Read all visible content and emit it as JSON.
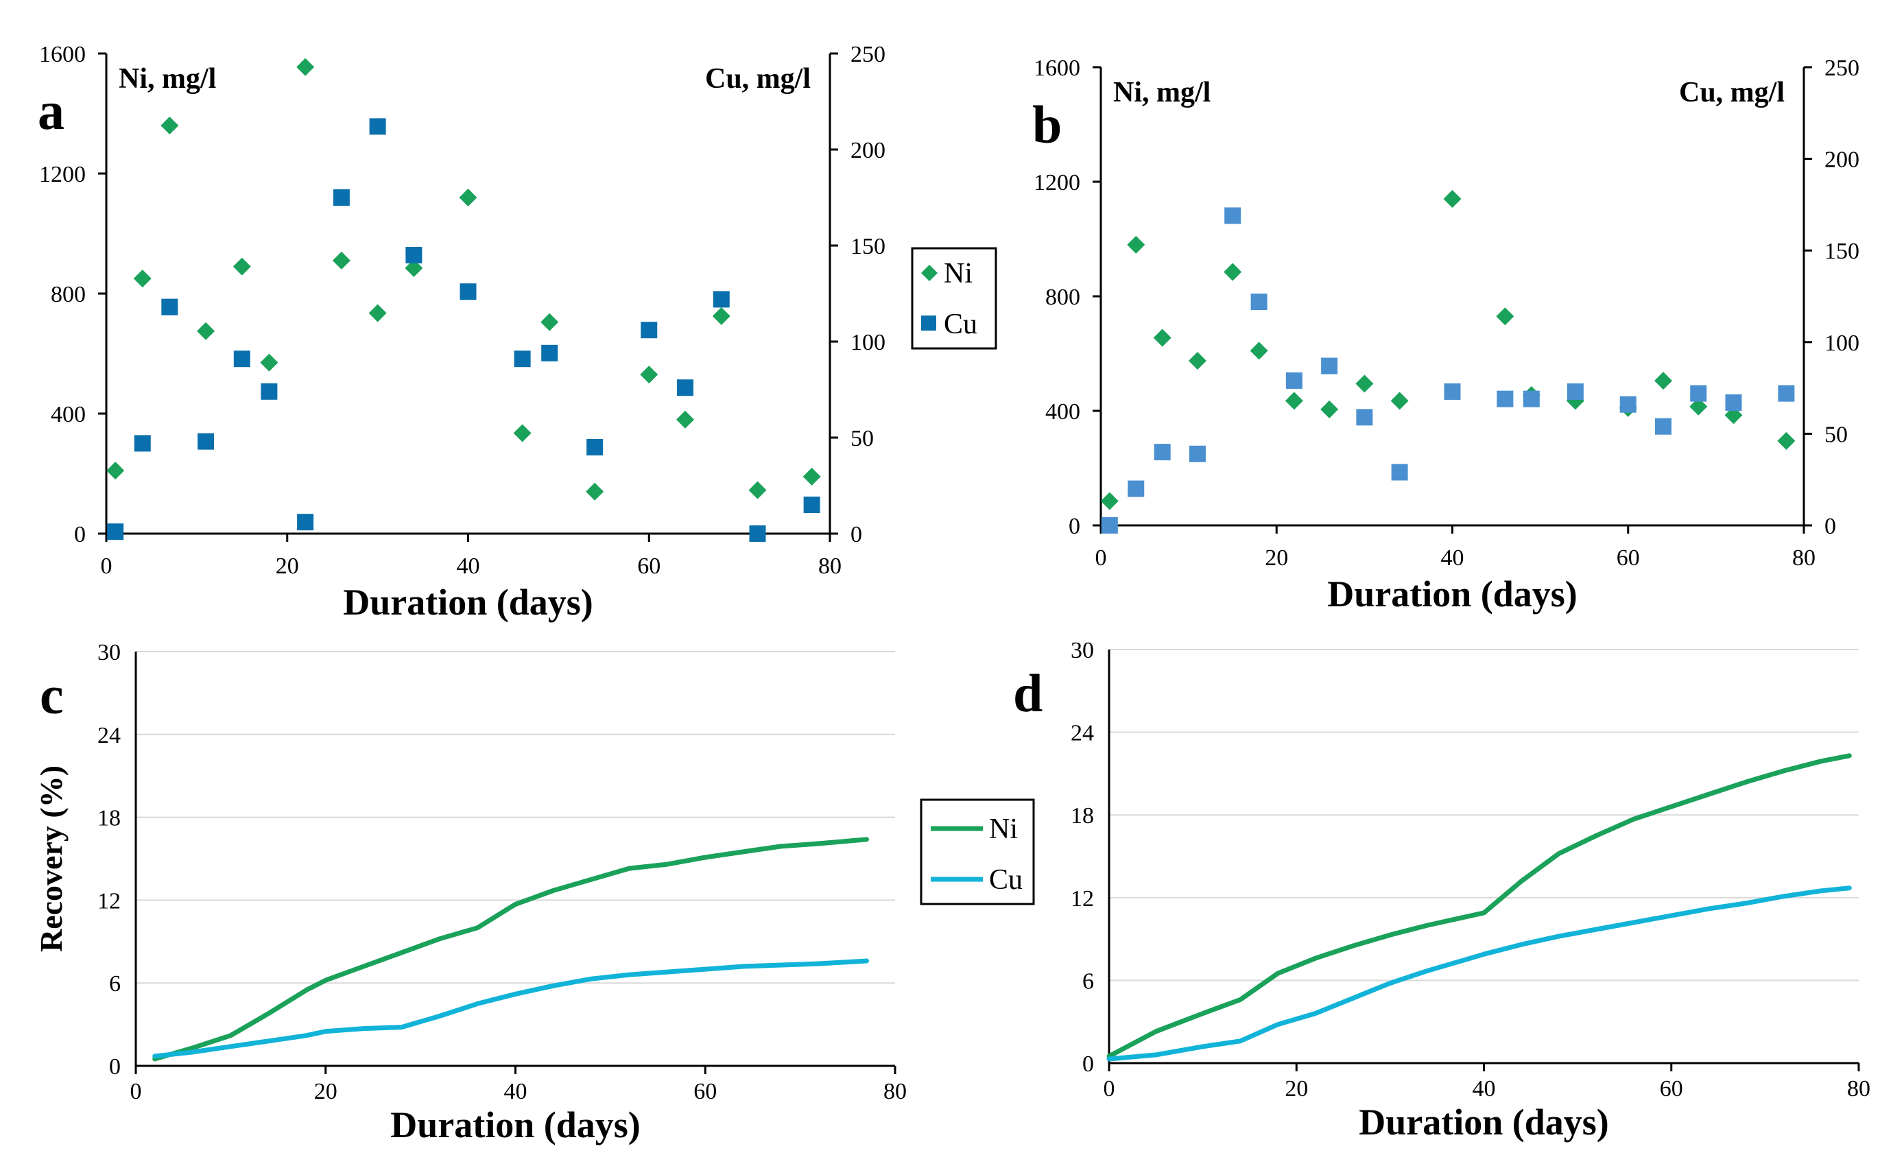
{
  "colors": {
    "ni": "#1aa15a",
    "cu_a": "#0a6fad",
    "cu_b": "#4a90d0",
    "cu_line": "#12b3d8"
  },
  "chart_data": [
    {
      "id": "a",
      "panel_label": "a",
      "type": "scatter",
      "left_label": "Ni, mg/l",
      "right_label": "Cu, mg/l",
      "xlabel": "Duration (days)",
      "xlim": [
        0,
        80
      ],
      "xticks": [
        0,
        20,
        40,
        60,
        80
      ],
      "ylim_left": [
        0,
        1600
      ],
      "yticks_left": [
        0,
        400,
        800,
        1200,
        1600
      ],
      "ylim_right": [
        0,
        250
      ],
      "yticks_right": [
        0,
        50,
        100,
        150,
        200,
        250
      ],
      "legend": [
        "Ni",
        "Cu"
      ],
      "series": [
        {
          "name": "Ni",
          "axis": "left",
          "marker": "diamond",
          "x": [
            1,
            4,
            7,
            11,
            15,
            18,
            22,
            26,
            30,
            34,
            40,
            46,
            49,
            54,
            60,
            64,
            68,
            72,
            78
          ],
          "y": [
            210,
            850,
            1360,
            675,
            890,
            570,
            1555,
            910,
            735,
            885,
            1120,
            335,
            705,
            140,
            530,
            380,
            725,
            145,
            190
          ]
        },
        {
          "name": "Cu",
          "axis": "right",
          "marker": "square",
          "x": [
            1,
            4,
            7,
            11,
            15,
            18,
            22,
            26,
            30,
            34,
            40,
            46,
            49,
            54,
            60,
            64,
            68,
            72,
            78
          ],
          "y": [
            1,
            47,
            118,
            48,
            91,
            74,
            6,
            175,
            212,
            145,
            126,
            91,
            94,
            45,
            106,
            76,
            122,
            0,
            15
          ]
        }
      ]
    },
    {
      "id": "b",
      "panel_label": "b",
      "type": "scatter",
      "left_label": "Ni, mg/l",
      "right_label": "Cu, mg/l",
      "xlabel": "Duration (days)",
      "xlim": [
        0,
        80
      ],
      "xticks": [
        0,
        20,
        40,
        60,
        80
      ],
      "ylim_left": [
        0,
        1600
      ],
      "yticks_left": [
        0,
        400,
        800,
        1200,
        1600
      ],
      "ylim_right": [
        0,
        250
      ],
      "yticks_right": [
        0,
        50,
        100,
        150,
        200,
        250
      ],
      "series": [
        {
          "name": "Ni",
          "axis": "left",
          "marker": "diamond",
          "x": [
            1,
            4,
            7,
            11,
            15,
            18,
            22,
            26,
            30,
            34,
            40,
            46,
            49,
            54,
            60,
            64,
            68,
            72,
            78
          ],
          "y": [
            85,
            980,
            655,
            575,
            885,
            610,
            435,
            405,
            495,
            435,
            1140,
            730,
            455,
            435,
            410,
            505,
            415,
            385,
            295
          ]
        },
        {
          "name": "Cu",
          "axis": "right",
          "marker": "square",
          "x": [
            1,
            4,
            7,
            11,
            15,
            18,
            22,
            26,
            30,
            34,
            40,
            46,
            49,
            54,
            60,
            64,
            68,
            72,
            78
          ],
          "y": [
            0,
            20,
            40,
            39,
            169,
            122,
            79,
            87,
            59,
            29,
            73,
            69,
            69,
            73,
            66,
            54,
            72,
            67,
            72
          ]
        }
      ]
    },
    {
      "id": "c",
      "panel_label": "c",
      "type": "line",
      "xlabel": "Duration (days)",
      "ylabel": "Recovery (%)",
      "xlim": [
        0,
        80
      ],
      "xticks": [
        0,
        20,
        40,
        60,
        80
      ],
      "ylim": [
        0,
        30
      ],
      "yticks": [
        0,
        6,
        12,
        18,
        24,
        30
      ],
      "grid": true,
      "legend": [
        "Ni",
        "Cu"
      ],
      "series": [
        {
          "name": "Ni",
          "x": [
            2,
            6,
            10,
            14,
            18,
            20,
            24,
            28,
            32,
            36,
            40,
            44,
            48,
            52,
            56,
            60,
            64,
            68,
            72,
            77
          ],
          "y": [
            0.5,
            1.3,
            2.2,
            3.8,
            5.5,
            6.2,
            7.2,
            8.2,
            9.2,
            10.0,
            11.7,
            12.7,
            13.5,
            14.3,
            14.6,
            15.1,
            15.5,
            15.9,
            16.1,
            16.4
          ]
        },
        {
          "name": "Cu",
          "x": [
            2,
            6,
            10,
            14,
            18,
            20,
            24,
            28,
            32,
            36,
            40,
            44,
            48,
            52,
            56,
            60,
            64,
            68,
            72,
            77
          ],
          "y": [
            0.7,
            1.0,
            1.4,
            1.8,
            2.2,
            2.5,
            2.7,
            2.8,
            3.6,
            4.5,
            5.2,
            5.8,
            6.3,
            6.6,
            6.8,
            7.0,
            7.2,
            7.3,
            7.4,
            7.6
          ]
        }
      ]
    },
    {
      "id": "d",
      "panel_label": "d",
      "type": "line",
      "xlabel": "Duration (days)",
      "xlim": [
        0,
        80
      ],
      "xticks": [
        0,
        20,
        40,
        60,
        80
      ],
      "ylim": [
        0,
        30
      ],
      "yticks": [
        0,
        6,
        12,
        18,
        24,
        30
      ],
      "grid": true,
      "series": [
        {
          "name": "Ni",
          "x": [
            0,
            5,
            10,
            14,
            18,
            22,
            26,
            30,
            34,
            38,
            40,
            44,
            48,
            52,
            56,
            60,
            64,
            68,
            72,
            76,
            79
          ],
          "y": [
            0.5,
            2.3,
            3.6,
            4.6,
            6.5,
            7.6,
            8.5,
            9.3,
            10.0,
            10.6,
            10.9,
            13.2,
            15.2,
            16.5,
            17.7,
            18.6,
            19.5,
            20.4,
            21.2,
            21.9,
            22.3
          ]
        },
        {
          "name": "Cu",
          "x": [
            0,
            5,
            10,
            14,
            18,
            22,
            26,
            30,
            34,
            38,
            40,
            44,
            48,
            52,
            56,
            60,
            64,
            68,
            72,
            76,
            79
          ],
          "y": [
            0.3,
            0.6,
            1.2,
            1.6,
            2.8,
            3.6,
            4.7,
            5.8,
            6.7,
            7.5,
            7.9,
            8.6,
            9.2,
            9.7,
            10.2,
            10.7,
            11.2,
            11.6,
            12.1,
            12.5,
            12.7
          ]
        }
      ]
    }
  ]
}
